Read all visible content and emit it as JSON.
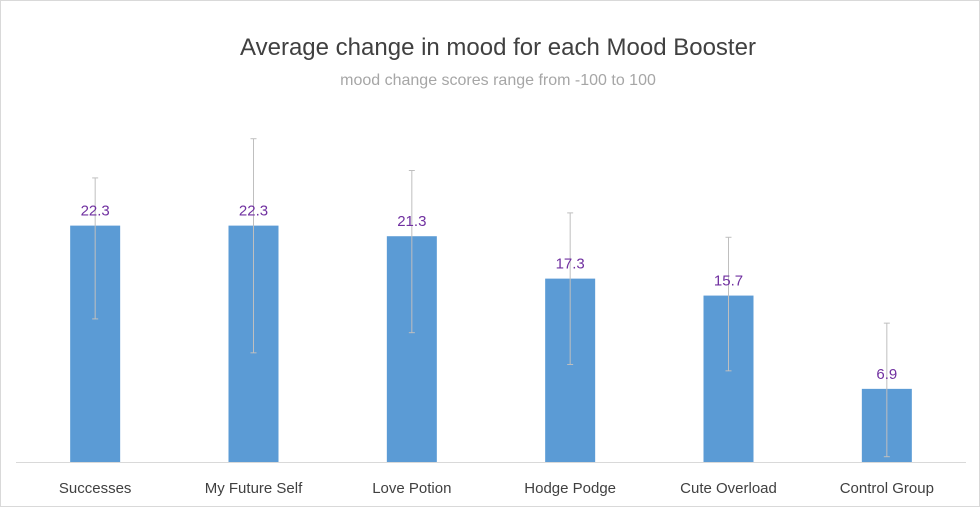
{
  "chart_data": {
    "type": "bar",
    "title": "Average change in mood for each Mood Booster",
    "subtitle": "mood change scores range from -100 to 100",
    "xlabel": "",
    "ylabel": "",
    "categories": [
      "Successes",
      "My Future Self",
      "Love Potion",
      "Hodge Podge",
      "Cute Overload",
      "Control Group"
    ],
    "values": [
      22.3,
      22.3,
      21.3,
      17.3,
      15.7,
      6.9
    ],
    "data_labels": [
      "22.3",
      "22.3",
      "21.3",
      "17.3",
      "15.7",
      "6.9"
    ],
    "error_bars": [
      {
        "low": 13.5,
        "high": 26.8
      },
      {
        "low": 10.3,
        "high": 30.5
      },
      {
        "low": 12.2,
        "high": 27.5
      },
      {
        "low": 9.2,
        "high": 23.5
      },
      {
        "low": 8.6,
        "high": 21.2
      },
      {
        "low": 0.5,
        "high": 13.1
      }
    ],
    "ylim": [
      0,
      33
    ],
    "grid": false,
    "legend": "none",
    "colors": {
      "bar": "#5b9bd5",
      "data_label": "#7030a0",
      "error_bar": "#bfbfbf",
      "axis": "#d9d9d9"
    }
  }
}
